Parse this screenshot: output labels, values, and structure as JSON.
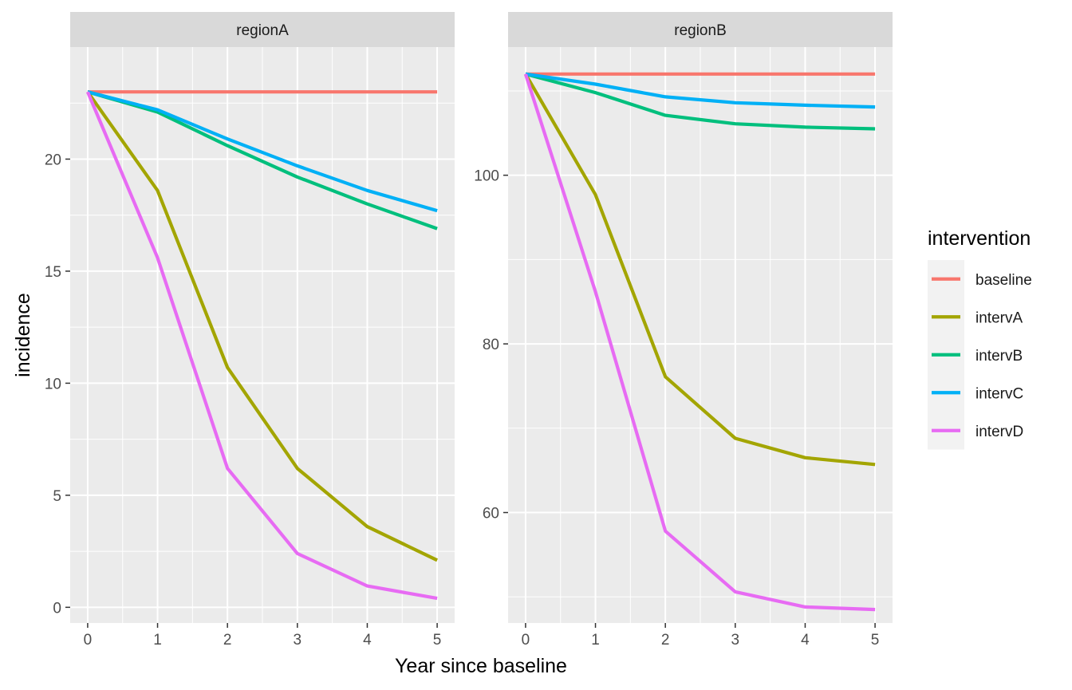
{
  "chart_data": {
    "type": "line",
    "xlabel": "Year since baseline",
    "ylabel": "incidence",
    "legend": {
      "title": "intervention",
      "position": "right",
      "entries": [
        "baseline",
        "intervA",
        "intervB",
        "intervC",
        "intervD"
      ]
    },
    "colors": {
      "baseline": "#F8766D",
      "intervA": "#A3A500",
      "intervB": "#00BF7D",
      "intervC": "#00B0F6",
      "intervD": "#E76BF3"
    },
    "grid": true,
    "x": [
      0,
      1,
      2,
      3,
      4,
      5
    ],
    "panels": [
      {
        "strip": "regionA",
        "xlim": [
          -0.25,
          5.25
        ],
        "ylim": [
          -0.7,
          25.0
        ],
        "yticks": [
          0,
          5,
          10,
          15,
          20
        ],
        "xticks": [
          0,
          1,
          2,
          3,
          4,
          5
        ],
        "series": [
          {
            "name": "baseline",
            "values": [
              23,
              23,
              23,
              23,
              23,
              23
            ]
          },
          {
            "name": "intervA",
            "values": [
              23,
              18.6,
              10.7,
              6.2,
              3.6,
              2.1
            ]
          },
          {
            "name": "intervB",
            "values": [
              23,
              22.1,
              20.6,
              19.2,
              18.0,
              16.9
            ]
          },
          {
            "name": "intervC",
            "values": [
              23,
              22.2,
              20.9,
              19.7,
              18.6,
              17.7
            ]
          },
          {
            "name": "intervD",
            "values": [
              23,
              15.6,
              6.2,
              2.4,
              0.95,
              0.4
            ]
          }
        ]
      },
      {
        "strip": "regionB",
        "xlim": [
          -0.25,
          5.25
        ],
        "ylim": [
          46.9,
          115.2
        ],
        "yticks": [
          60,
          80,
          100
        ],
        "xticks": [
          0,
          1,
          2,
          3,
          4,
          5
        ],
        "series": [
          {
            "name": "baseline",
            "values": [
              112,
              112,
              112,
              112,
              112,
              112
            ]
          },
          {
            "name": "intervA",
            "values": [
              112,
              97.7,
              76.1,
              68.8,
              66.5,
              65.7
            ]
          },
          {
            "name": "intervB",
            "values": [
              112,
              109.8,
              107.1,
              106.1,
              105.7,
              105.5
            ]
          },
          {
            "name": "intervC",
            "values": [
              112,
              110.8,
              109.3,
              108.6,
              108.3,
              108.1
            ]
          },
          {
            "name": "intervD",
            "values": [
              112,
              86.2,
              57.8,
              50.6,
              48.8,
              48.5
            ]
          }
        ]
      }
    ]
  }
}
